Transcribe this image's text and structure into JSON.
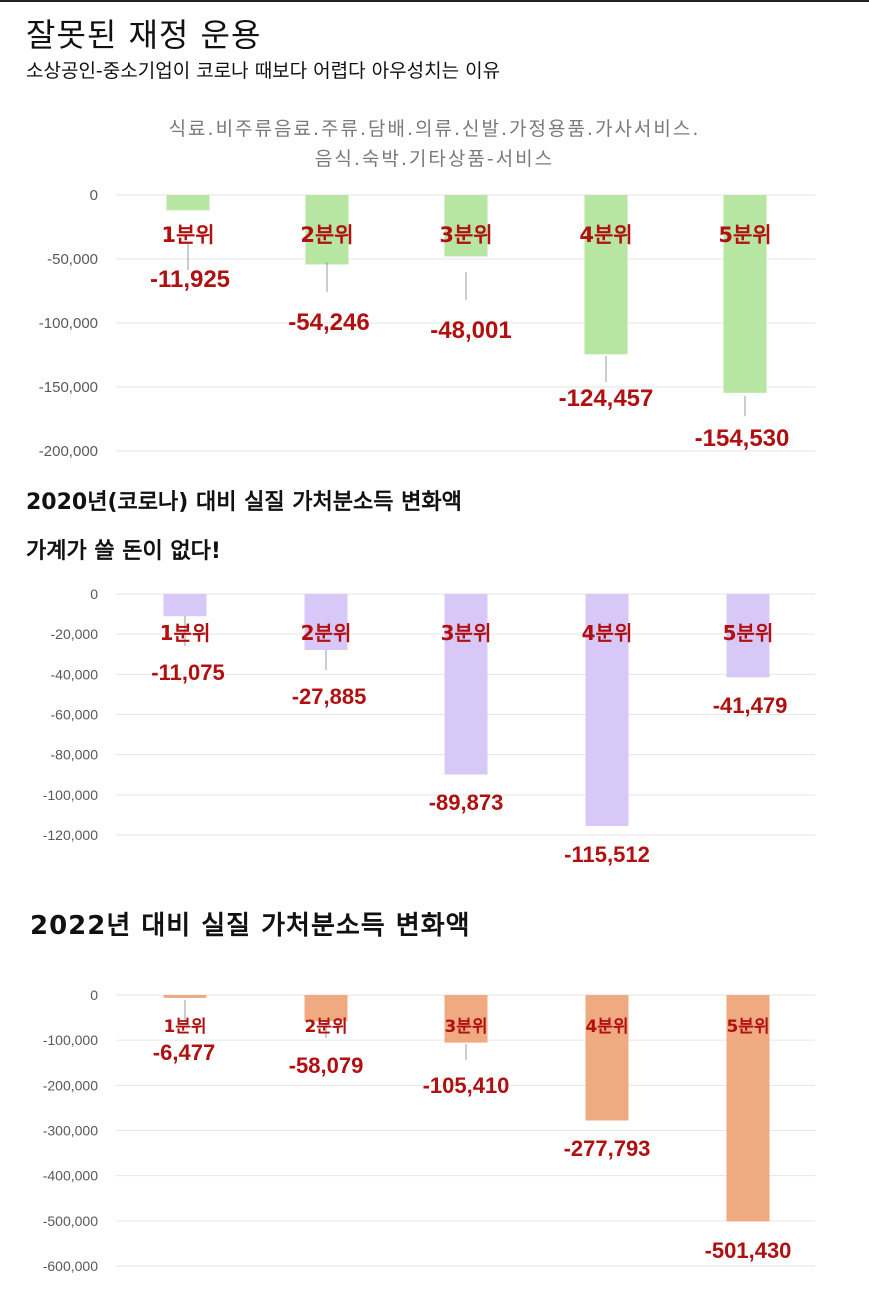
{
  "header": {
    "title": "잘못된 재정 운용",
    "subtitle": "소상공인-중소기업이 코로나 때보다 어렵다 아우성치는 이유"
  },
  "captions": {
    "c2_line1": "2020년(코로나) 대비 실질 가처분소득 변화액",
    "c2_line2": "가계가 쓸 돈이 없다!",
    "c3": "2022년 대비 실질 가처분소득 변화액"
  },
  "colors": {
    "label_red": "#b01010",
    "grid": "#e6e6e6",
    "leader": "#999999",
    "tick_text": "#595959"
  },
  "chart_data": [
    {
      "type": "bar",
      "title_lines": [
        "식료.비주류음료.주류.담배.의류.신발.가정용품.가사서비스.",
        "음식.숙박.기타상품-서비스"
      ],
      "categories": [
        "1분위",
        "2분위",
        "3분위",
        "4분위",
        "5분위"
      ],
      "values": [
        -11925,
        -54246,
        -48001,
        -124457,
        -154530
      ],
      "value_labels": [
        "-11,925",
        "-54,246",
        "-48,001",
        "-124,457",
        "-154,530"
      ],
      "yticks": [
        0,
        -50000,
        -100000,
        -150000,
        -200000
      ],
      "ytick_labels": [
        "0",
        "-50,000",
        "-100,000",
        "-150,000",
        "-200,000"
      ],
      "ylim": [
        -200000,
        0
      ],
      "bar_color": "#b6e6a2",
      "grid": true
    },
    {
      "type": "bar",
      "categories": [
        "1분위",
        "2분위",
        "3분위",
        "4분위",
        "5분위"
      ],
      "values": [
        -11075,
        -27885,
        -89873,
        -115512,
        -41479
      ],
      "value_labels": [
        "-11,075",
        "-27,885",
        "-89,873",
        "-115,512",
        "-41,479"
      ],
      "yticks": [
        0,
        -20000,
        -40000,
        -60000,
        -80000,
        -100000,
        -120000
      ],
      "ytick_labels": [
        "0",
        "-20,000",
        "-40,000",
        "-60,000",
        "-80,000",
        "-100,000",
        "-120,000"
      ],
      "ylim": [
        -120000,
        0
      ],
      "bar_color": "#d8c8f7",
      "grid": true
    },
    {
      "type": "bar",
      "categories": [
        "1분위",
        "2분위",
        "3분위",
        "4분위",
        "5분위"
      ],
      "values": [
        -6477,
        -58079,
        -105410,
        -277793,
        -501430
      ],
      "value_labels": [
        "-6,477",
        "-58,079",
        "-105,410",
        "-277,793",
        "-501,430"
      ],
      "yticks": [
        0,
        -100000,
        -200000,
        -300000,
        -400000,
        -500000,
        -600000
      ],
      "ytick_labels": [
        "0",
        "-100,000",
        "-200,000",
        "-300,000",
        "-400,000",
        "-500,000",
        "-600,000"
      ],
      "ylim": [
        -600000,
        0
      ],
      "bar_color": "#f0aa82",
      "grid": true
    }
  ]
}
